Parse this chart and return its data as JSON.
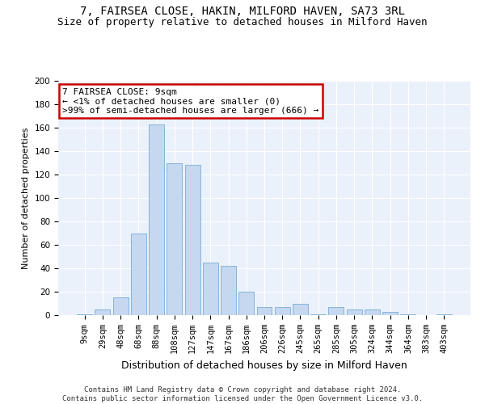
{
  "title": "7, FAIRSEA CLOSE, HAKIN, MILFORD HAVEN, SA73 3RL",
  "subtitle": "Size of property relative to detached houses in Milford Haven",
  "xlabel": "Distribution of detached houses by size in Milford Haven",
  "ylabel": "Number of detached properties",
  "categories": [
    "9sqm",
    "29sqm",
    "48sqm",
    "68sqm",
    "88sqm",
    "108sqm",
    "127sqm",
    "147sqm",
    "167sqm",
    "186sqm",
    "206sqm",
    "226sqm",
    "245sqm",
    "265sqm",
    "285sqm",
    "305sqm",
    "324sqm",
    "344sqm",
    "364sqm",
    "383sqm",
    "403sqm"
  ],
  "values": [
    1,
    5,
    15,
    70,
    163,
    130,
    128,
    45,
    42,
    20,
    7,
    7,
    10,
    1,
    7,
    5,
    5,
    3,
    1,
    0,
    1
  ],
  "bar_color": "#c5d8f0",
  "bar_edge_color": "#7aadd4",
  "annotation_box_color": "#ffffff",
  "annotation_border_color": "#cc0000",
  "annotation_text": "7 FAIRSEA CLOSE: 9sqm\n← <1% of detached houses are smaller (0)\n>99% of semi-detached houses are larger (666) →",
  "background_color": "#eaf1fb",
  "footer_line1": "Contains HM Land Registry data © Crown copyright and database right 2024.",
  "footer_line2": "Contains public sector information licensed under the Open Government Licence v3.0.",
  "ylim": [
    0,
    200
  ],
  "yticks": [
    0,
    20,
    40,
    60,
    80,
    100,
    120,
    140,
    160,
    180,
    200
  ],
  "title_fontsize": 10,
  "subtitle_fontsize": 9,
  "ylabel_fontsize": 8,
  "xlabel_fontsize": 9,
  "tick_fontsize": 7.5,
  "footer_fontsize": 6.5,
  "ann_fontsize": 8
}
